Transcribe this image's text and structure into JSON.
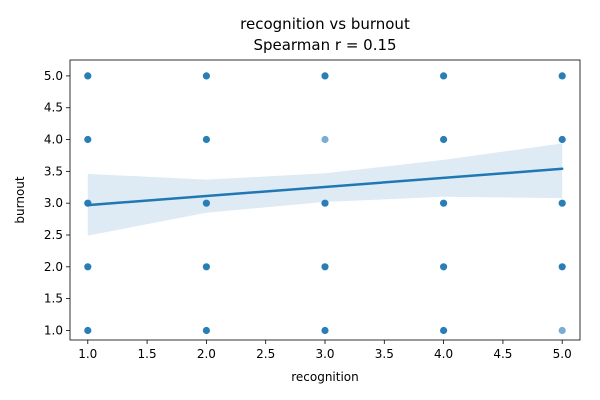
{
  "chart_data": {
    "type": "scatter",
    "title": "recognition vs burnout",
    "subtitle": "Spearman r = 0.15",
    "xlabel": "recognition",
    "ylabel": "burnout",
    "xlim": [
      0.85,
      5.15
    ],
    "ylim": [
      0.85,
      5.25
    ],
    "xticks": [
      "1.0",
      "1.5",
      "2.0",
      "2.5",
      "3.0",
      "3.5",
      "4.0",
      "4.5",
      "5.0"
    ],
    "yticks": [
      "1.0",
      "1.5",
      "2.0",
      "2.5",
      "3.0",
      "3.5",
      "4.0",
      "4.5",
      "5.0"
    ],
    "grid": false,
    "point_color": "#1f77b4",
    "points": [
      {
        "x": 1,
        "y": 5
      },
      {
        "x": 1,
        "y": 4
      },
      {
        "x": 1,
        "y": 3
      },
      {
        "x": 1,
        "y": 2
      },
      {
        "x": 1,
        "y": 1
      },
      {
        "x": 2,
        "y": 5
      },
      {
        "x": 2,
        "y": 4
      },
      {
        "x": 2,
        "y": 3
      },
      {
        "x": 2,
        "y": 2
      },
      {
        "x": 2,
        "y": 1
      },
      {
        "x": 3,
        "y": 5
      },
      {
        "x": 3,
        "y": 4,
        "faint": true
      },
      {
        "x": 3,
        "y": 3
      },
      {
        "x": 3,
        "y": 2
      },
      {
        "x": 3,
        "y": 1
      },
      {
        "x": 4,
        "y": 5
      },
      {
        "x": 4,
        "y": 4
      },
      {
        "x": 4,
        "y": 3
      },
      {
        "x": 4,
        "y": 2
      },
      {
        "x": 4,
        "y": 1
      },
      {
        "x": 5,
        "y": 5
      },
      {
        "x": 5,
        "y": 4
      },
      {
        "x": 5,
        "y": 3
      },
      {
        "x": 5,
        "y": 2
      },
      {
        "x": 5,
        "y": 1,
        "faint": true
      }
    ],
    "regression": {
      "x": [
        1,
        5
      ],
      "y": [
        2.97,
        3.54
      ],
      "ci": [
        {
          "x": 1,
          "lo": 2.49,
          "hi": 3.46
        },
        {
          "x": 2,
          "lo": 2.85,
          "hi": 3.37
        },
        {
          "x": 3,
          "lo": 3.02,
          "hi": 3.47
        },
        {
          "x": 4,
          "lo": 3.1,
          "hi": 3.68
        },
        {
          "x": 5,
          "lo": 3.08,
          "hi": 3.94
        }
      ]
    }
  }
}
